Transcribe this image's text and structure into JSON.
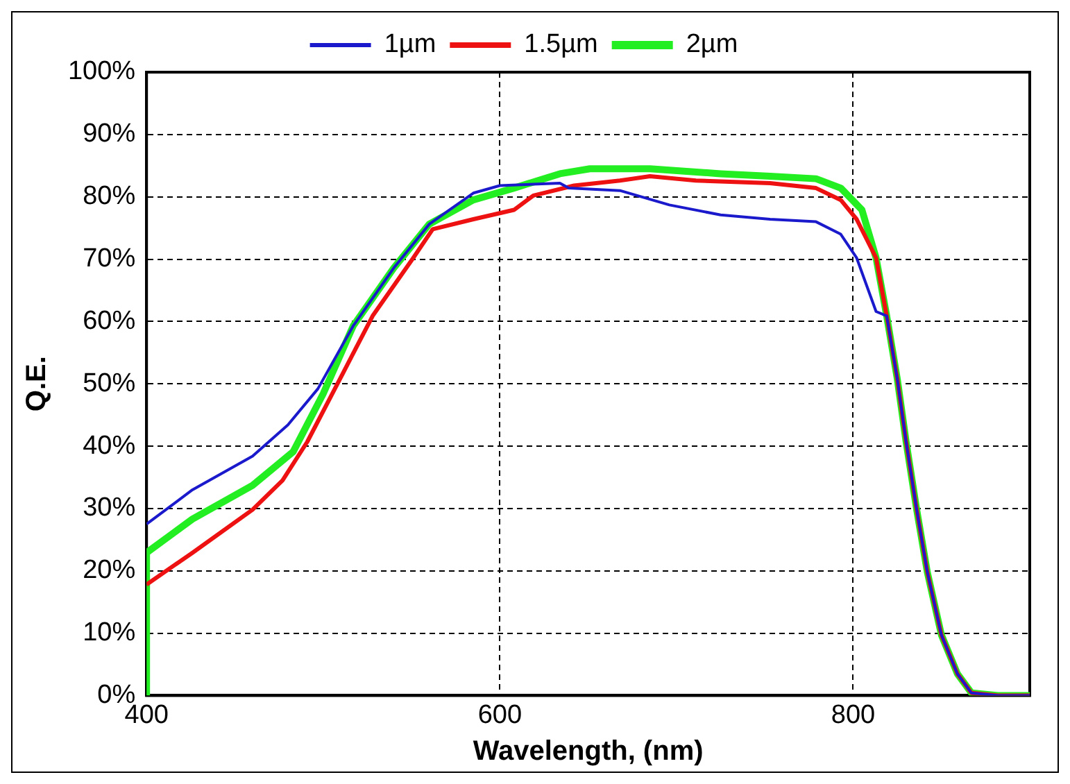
{
  "chart_data": {
    "type": "line",
    "xlabel": "Wavelength, (nm)",
    "ylabel": "Q.E.",
    "xlim": [
      400,
      900
    ],
    "xticks": [
      400,
      600,
      800
    ],
    "ylim": [
      0,
      100
    ],
    "yticks": [
      {
        "value": 0,
        "label": "0%"
      },
      {
        "value": 10,
        "label": "10%"
      },
      {
        "value": 20,
        "label": "20%"
      },
      {
        "value": 30,
        "label": "30%"
      },
      {
        "value": 40,
        "label": "40%"
      },
      {
        "value": 50,
        "label": "50%"
      },
      {
        "value": 60,
        "label": "60%"
      },
      {
        "value": 70,
        "label": "70%"
      },
      {
        "value": 80,
        "label": "80%"
      },
      {
        "value": 90,
        "label": "90%"
      },
      {
        "value": 100,
        "label": "100%"
      }
    ],
    "grid": true,
    "legend": "top",
    "marker": "none",
    "line_style": "solid",
    "series": [
      {
        "name": "1µm",
        "color": "#1a1acc",
        "x": [
          400,
          426,
          460,
          480,
          497,
          517,
          540,
          560,
          585,
          600,
          634,
          639,
          668,
          696,
          725,
          753,
          779,
          793,
          802,
          813,
          819,
          825,
          830,
          836,
          842,
          850,
          859,
          867,
          882,
          900
        ],
        "values": [
          27.5,
          33,
          38.4,
          43.4,
          49.2,
          59.3,
          68.6,
          75.6,
          80.6,
          81.8,
          82.2,
          81.4,
          81,
          78.7,
          77.1,
          76.4,
          76,
          74,
          70.2,
          61.6,
          60.9,
          50.8,
          40.7,
          29.8,
          19.8,
          9.7,
          3.5,
          0.4,
          0,
          0
        ]
      },
      {
        "name": "1.5µm",
        "color": "#ee1111",
        "x": [
          400,
          426,
          460,
          477,
          491,
          511,
          528,
          551,
          562,
          585,
          608,
          619,
          642,
          668,
          685,
          711,
          753,
          779,
          793,
          802,
          813,
          819,
          825,
          830,
          836,
          842,
          850,
          859,
          867,
          882,
          900
        ],
        "values": [
          17.8,
          22.9,
          29.8,
          34.5,
          40.7,
          51.6,
          60.9,
          70.2,
          74.8,
          76.4,
          77.9,
          80.2,
          81.8,
          82.6,
          83.3,
          82.6,
          82.2,
          81.4,
          79.5,
          76.4,
          70.2,
          60.9,
          50.8,
          40.7,
          29.8,
          19.8,
          9.7,
          3.5,
          0.4,
          0,
          0
        ]
      },
      {
        "name": "2µm",
        "color": "#22ee22",
        "x": [
          400,
          400,
          426,
          460,
          483,
          500,
          517,
          540,
          560,
          585,
          608,
          634,
          651,
          685,
          725,
          753,
          779,
          793,
          805,
          813,
          819,
          825,
          830,
          836,
          842,
          850,
          859,
          867,
          882,
          900
        ],
        "values": [
          0,
          22.9,
          28.3,
          33.7,
          39.1,
          48.4,
          59.3,
          68.6,
          75.6,
          79.5,
          81.4,
          83.7,
          84.5,
          84.5,
          83.7,
          83.3,
          82.9,
          81.4,
          77.9,
          70.2,
          60.9,
          50.8,
          40.7,
          29.8,
          19.8,
          9.7,
          3.5,
          0.4,
          0,
          0
        ]
      }
    ]
  }
}
